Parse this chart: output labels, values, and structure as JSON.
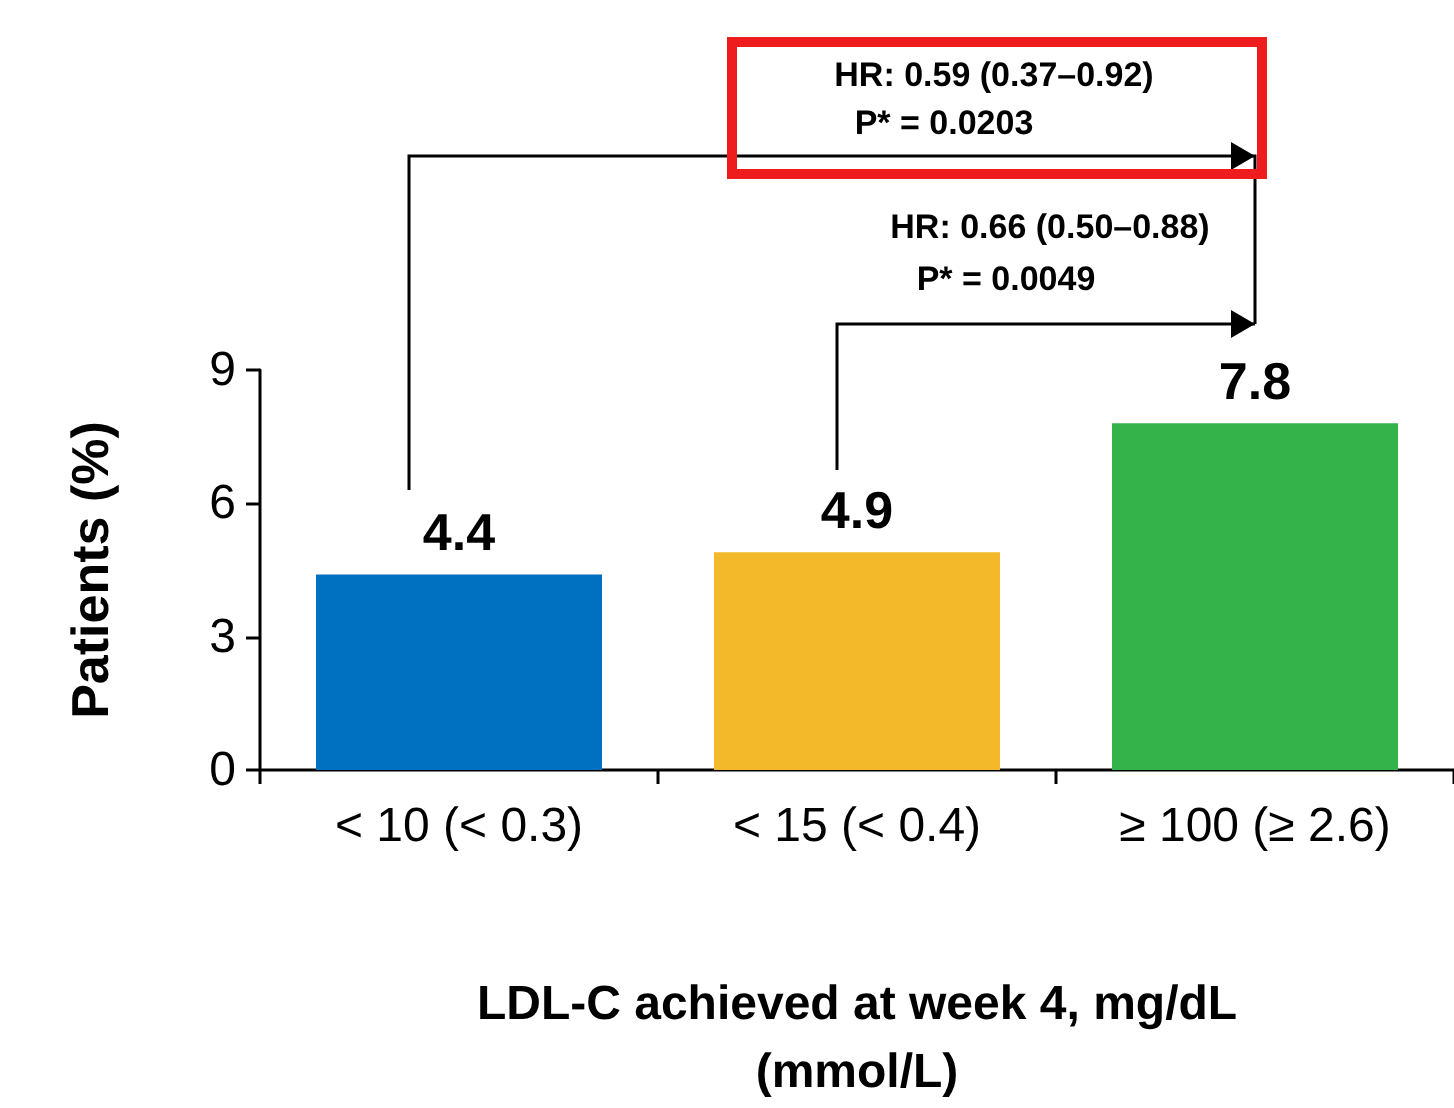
{
  "chart_data": {
    "type": "bar",
    "xlabel": "LDL-C achieved at week 4, mg/dL\n(mmol/L)",
    "ylabel": "Patients (%)",
    "categories": [
      "< 10 (< 0.3)",
      "< 15 (< 0.4)",
      "≥ 100 (≥ 2.6)"
    ],
    "values": [
      4.4,
      4.9,
      7.8
    ],
    "colors": [
      "#0070c0",
      "#f4b92a",
      "#33b34a"
    ],
    "ylim": [
      0,
      9
    ],
    "yticks": [
      0,
      3,
      6,
      9
    ],
    "grid": false,
    "data_labels": true,
    "annotations": [
      "HR: 0.59 (0.37–0.92)",
      "P* = 0.0203",
      "HR: 0.66 (0.50–0.88)",
      "P* = 0.0049"
    ]
  }
}
